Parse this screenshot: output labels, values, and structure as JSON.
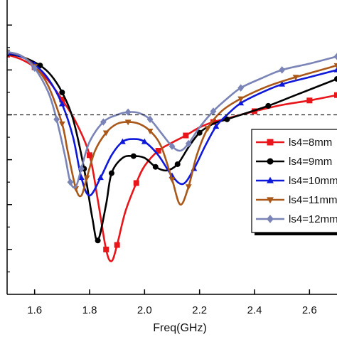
{
  "chart_data": {
    "type": "line",
    "title": "",
    "xlabel": "Freq(GHz)",
    "ylabel": "",
    "xlim": [
      1.5,
      2.7
    ],
    "ylim": [
      -30,
      2
    ],
    "x_ticks": [
      1.6,
      1.8,
      2.0,
      2.2,
      2.4,
      2.6
    ],
    "x_tick_labels": [
      "1.6",
      "1.8",
      "2.0",
      "2.2",
      "2.4",
      "2.6"
    ],
    "y_ticks": [
      0,
      -5,
      -10,
      -15,
      -20,
      -25
    ],
    "reference_line": -10,
    "grid": false,
    "legend_position": "right",
    "series": [
      {
        "name": "ls4=8mm",
        "color": "#e8161b",
        "marker": "square",
        "x": [
          1.5,
          1.55,
          1.6,
          1.65,
          1.7,
          1.75,
          1.8,
          1.83,
          1.86,
          1.88,
          1.9,
          1.93,
          1.97,
          2.0,
          2.05,
          2.1,
          2.15,
          2.2,
          2.25,
          2.3,
          2.4,
          2.5,
          2.6,
          2.7
        ],
        "y": [
          -3.3,
          -3.8,
          -4.7,
          -6.2,
          -8.3,
          -10.8,
          -14.5,
          -19.5,
          -25.0,
          -26.3,
          -24.5,
          -20.8,
          -17.6,
          -15.7,
          -14.0,
          -13.1,
          -12.3,
          -11.4,
          -10.8,
          -10.4,
          -9.6,
          -8.9,
          -8.4,
          -7.8
        ]
      },
      {
        "name": "ls4=9mm",
        "color": "#000000",
        "marker": "circle",
        "x": [
          1.5,
          1.56,
          1.62,
          1.66,
          1.7,
          1.74,
          1.78,
          1.81,
          1.83,
          1.86,
          1.88,
          1.92,
          1.96,
          2.0,
          2.04,
          2.08,
          2.12,
          2.16,
          2.2,
          2.25,
          2.3,
          2.35,
          2.45,
          2.55,
          2.7
        ],
        "y": [
          -3.2,
          -3.6,
          -4.5,
          -5.6,
          -7.5,
          -10.5,
          -16.0,
          -21.5,
          -24.0,
          -20.0,
          -16.5,
          -14.8,
          -14.6,
          -14.8,
          -15.8,
          -16.2,
          -15.5,
          -13.6,
          -12.0,
          -11.0,
          -10.5,
          -10.0,
          -9.0,
          -7.8,
          -6.0
        ]
      },
      {
        "name": "ls4=10mm",
        "color": "#0e18d8",
        "marker": "triangle-up",
        "x": [
          1.5,
          1.55,
          1.6,
          1.65,
          1.7,
          1.74,
          1.77,
          1.8,
          1.84,
          1.88,
          1.92,
          1.96,
          2.0,
          2.05,
          2.1,
          2.14,
          2.18,
          2.22,
          2.26,
          2.3,
          2.35,
          2.42,
          2.5,
          2.6,
          2.7
        ],
        "y": [
          -3.1,
          -3.5,
          -4.4,
          -6.0,
          -8.8,
          -12.5,
          -17.0,
          -19.0,
          -17.0,
          -14.5,
          -13.0,
          -12.7,
          -13.0,
          -14.5,
          -16.8,
          -17.7,
          -16.0,
          -13.5,
          -11.3,
          -10.0,
          -8.7,
          -7.6,
          -6.6,
          -5.8,
          -5.0
        ]
      },
      {
        "name": "ls4=11mm",
        "color": "#a9581a",
        "marker": "triangle-down",
        "x": [
          1.5,
          1.55,
          1.6,
          1.65,
          1.7,
          1.72,
          1.75,
          1.77,
          1.79,
          1.82,
          1.86,
          1.9,
          1.94,
          1.98,
          2.02,
          2.06,
          2.1,
          2.13,
          2.16,
          2.19,
          2.23,
          2.28,
          2.35,
          2.45,
          2.55,
          2.7
        ],
        "y": [
          -3.0,
          -3.4,
          -4.6,
          -6.8,
          -11.0,
          -14.0,
          -18.2,
          -19.0,
          -17.0,
          -14.0,
          -12.0,
          -11.0,
          -10.8,
          -11.0,
          -11.8,
          -13.5,
          -17.2,
          -20.0,
          -18.0,
          -14.5,
          -11.5,
          -9.6,
          -8.2,
          -6.8,
          -5.8,
          -4.5
        ]
      },
      {
        "name": "ls4=12mm",
        "color": "#7a84b6",
        "marker": "diamond",
        "x": [
          1.5,
          1.55,
          1.6,
          1.65,
          1.68,
          1.71,
          1.73,
          1.75,
          1.77,
          1.8,
          1.85,
          1.9,
          1.94,
          1.98,
          2.02,
          2.06,
          2.1,
          2.13,
          2.16,
          2.2,
          2.25,
          2.3,
          2.35,
          2.42,
          2.5,
          2.6,
          2.7
        ],
        "y": [
          -3.0,
          -3.4,
          -4.8,
          -7.5,
          -10.5,
          -14.5,
          -17.5,
          -18.0,
          -16.0,
          -13.0,
          -10.8,
          -10.0,
          -9.7,
          -9.8,
          -10.5,
          -12.0,
          -13.5,
          -14.0,
          -13.2,
          -11.4,
          -9.6,
          -8.2,
          -7.0,
          -6.0,
          -5.0,
          -4.3,
          -3.5
        ]
      }
    ]
  }
}
